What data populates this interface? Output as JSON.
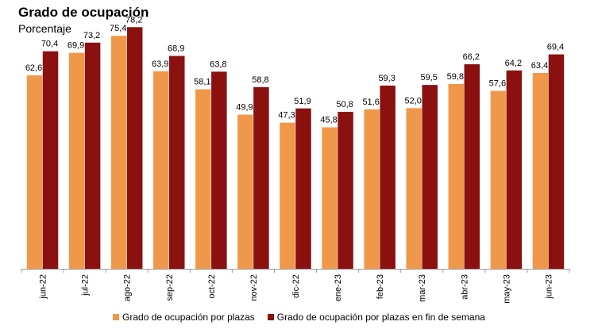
{
  "title": "Grado de ocupación",
  "subtitle": "Porcentaje",
  "chart_data": {
    "type": "bar",
    "title": "Grado de ocupación",
    "subtitle": "Porcentaje",
    "categories": [
      "jun-22",
      "jul-22",
      "ago-22",
      "sep-22",
      "oct-22",
      "nov-22",
      "dic-22",
      "ene-23",
      "feb-23",
      "mar-23",
      "abr-23",
      "may-23",
      "jun-23"
    ],
    "series": [
      {
        "name": "Grado de ocupación por plazas",
        "color": "#f0984a",
        "values": [
          62.6,
          69.9,
          75.4,
          63.9,
          58.1,
          49.9,
          47.3,
          45.8,
          51.6,
          52.0,
          59.8,
          57.6,
          63.4
        ],
        "labels": [
          "62,6",
          "69,9",
          "75,4",
          "63,9",
          "58,1",
          "49,9",
          "47,3",
          "45,8",
          "51,6",
          "52,0",
          "59,8",
          "57,6",
          "63,4"
        ]
      },
      {
        "name": "Grado de ocupación por plazas en fin de semana",
        "color": "#8b1010",
        "values": [
          70.4,
          73.2,
          78.2,
          68.9,
          63.8,
          58.8,
          51.9,
          50.8,
          59.3,
          59.5,
          66.2,
          64.2,
          69.4
        ],
        "labels": [
          "70,4",
          "73,2",
          "78,2",
          "68,9",
          "63,8",
          "58,8",
          "51,9",
          "50,8",
          "59,3",
          "59,5",
          "66,2",
          "64,2",
          "69,4"
        ]
      }
    ],
    "ylim": [
      0,
      87
    ],
    "grid": false,
    "legend": "bottom"
  }
}
